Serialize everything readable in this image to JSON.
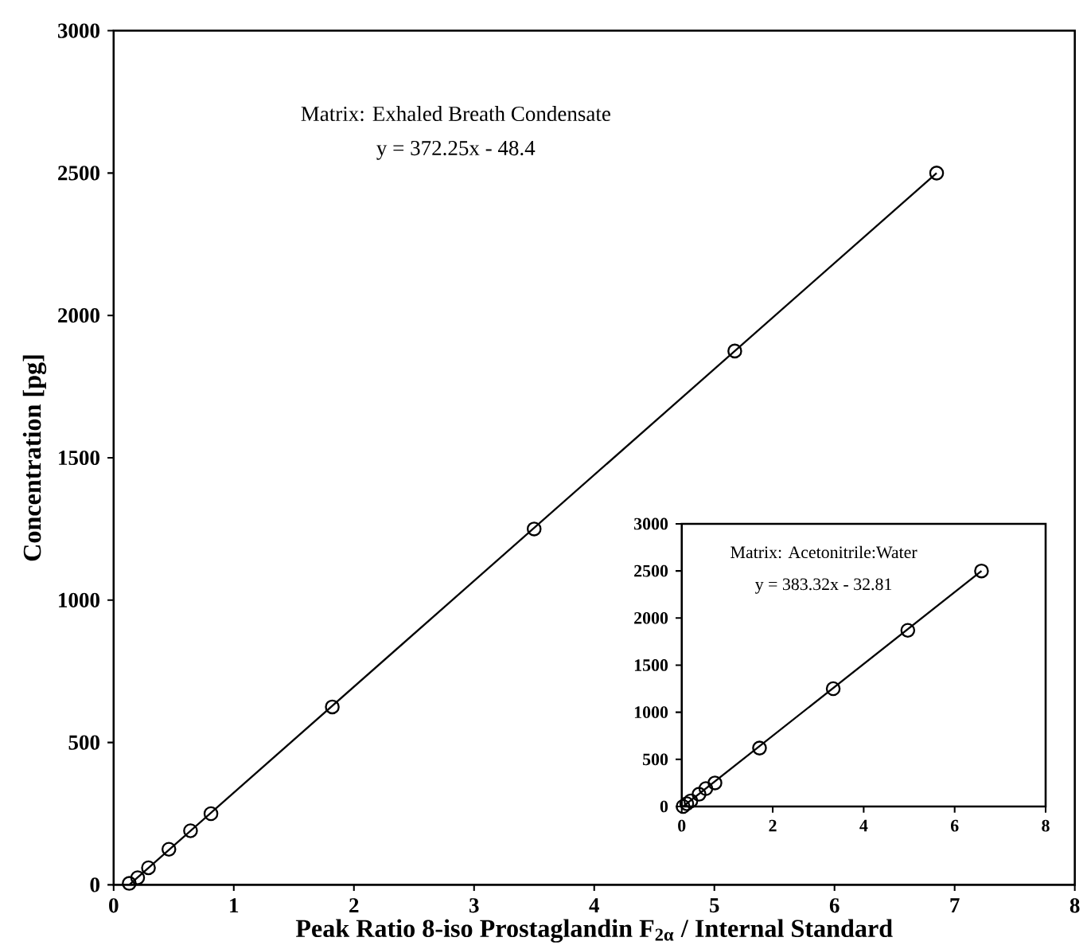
{
  "chart_data": [
    {
      "type": "scatter",
      "xlabel": "Peak Ratio 8-iso Prostaglandin F$_{2α}$ / Internal Standard",
      "ylabel": "Concentration [pg]",
      "annotations": [
        "Matrix: Exhaled Breath Condensate",
        "y = 372.25x - 48.4"
      ],
      "xlim": [
        0,
        8
      ],
      "ylim": [
        0,
        3000
      ],
      "xticks": [
        0,
        1,
        2,
        3,
        4,
        5,
        6,
        7,
        8
      ],
      "yticks": [
        0,
        500,
        1000,
        1500,
        2000,
        2500,
        3000
      ],
      "grid": false,
      "series": [
        {
          "marker": "circle",
          "color": "#000000",
          "x": [
            0.13,
            0.2,
            0.29,
            0.46,
            0.64,
            0.81,
            1.82,
            3.5,
            5.17,
            6.85
          ],
          "values": [
            5,
            25,
            60,
            125,
            190,
            250,
            625,
            1250,
            1875,
            2500
          ]
        },
        {
          "type": "line",
          "marker": "none",
          "color": "#000000",
          "line_style": "solid",
          "x": [
            0.13,
            6.85
          ],
          "values": [
            0,
            2500
          ]
        }
      ]
    },
    {
      "type": "scatter",
      "annotations": [
        "Matrix: Acetonitrile:Water",
        "y = 383.32x - 32.81"
      ],
      "xlim": [
        0,
        8
      ],
      "ylim": [
        0,
        3000
      ],
      "xticks": [
        0,
        2,
        4,
        6,
        8
      ],
      "yticks": [
        0,
        500,
        1000,
        1500,
        2000,
        2500,
        3000
      ],
      "grid": false,
      "series": [
        {
          "marker": "circle",
          "color": "#000000",
          "x": [
            0.03,
            0.11,
            0.2,
            0.38,
            0.53,
            0.73,
            1.71,
            3.33,
            4.97,
            6.59
          ],
          "values": [
            0,
            30,
            60,
            130,
            190,
            250,
            620,
            1250,
            1870,
            2500
          ]
        },
        {
          "type": "line",
          "marker": "none",
          "color": "#000000",
          "line_style": "solid",
          "x": [
            0.03,
            6.59
          ],
          "values": [
            0,
            2500
          ]
        }
      ]
    }
  ]
}
